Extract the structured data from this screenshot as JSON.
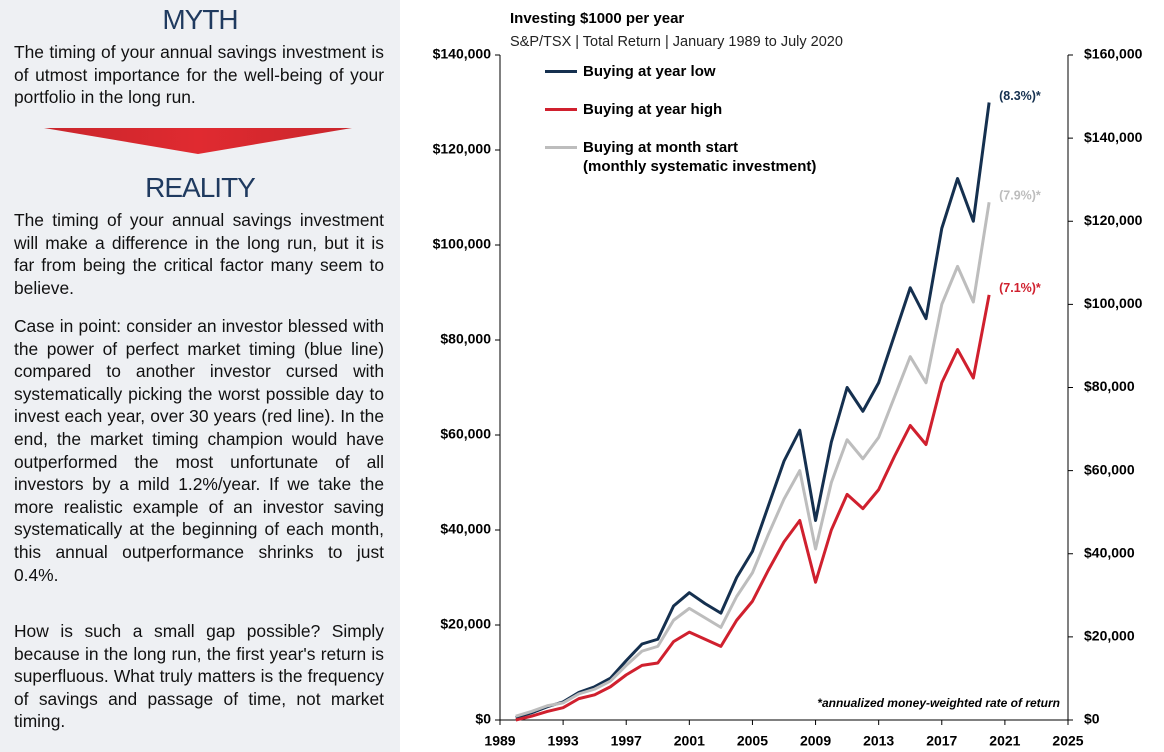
{
  "panel": {
    "myth_heading": "MYTH",
    "myth_text": "The timing of your annual savings investment is of utmost importance for the well-being of your portfolio in the long run.",
    "reality_heading": "REALITY",
    "reality_paragraphs": [
      "The timing of your annual savings investment will make a difference in the long run, but it is far from being the critical factor many seem to believe.",
      "Case in point: consider an investor blessed with the power of perfect market timing (blue line) compared to another investor cursed with systematically picking the worst possible day to invest each year, over 30 years (red line). In the end, the market timing champion would have outperformed the most unfortunate of all investors by a mild 1.2%/year. If we take the more realistic example of an investor saving systematically at the beginning of each month, this annual outperformance shrinks to just 0.4%.",
      "How is such a small gap possible? Simply because in the long run, the first year's return is superfluous. What truly matters is the frequency of savings and passage of time, not market timing."
    ]
  },
  "chart_data": {
    "type": "line",
    "title": "Investing $1000  per year",
    "subtitle": "S&P/TSX | Total Return | January  1989 to July 2020",
    "footnote": "*annualized money-weighted rate of return",
    "x": [
      1990,
      1991,
      1992,
      1993,
      1994,
      1995,
      1996,
      1997,
      1998,
      1999,
      2000,
      2001,
      2002,
      2003,
      2004,
      2005,
      2006,
      2007,
      2008,
      2009,
      2010,
      2011,
      2012,
      2013,
      2014,
      2015,
      2016,
      2017,
      2018,
      2019,
      2020
    ],
    "series": [
      {
        "name": "Buying at year low",
        "color": "#15304f",
        "annotation": "(8.3%)*",
        "values": [
          500,
          1500,
          2800,
          3800,
          5800,
          7000,
          8800,
          12500,
          16000,
          17000,
          24000,
          26800,
          24500,
          22500,
          30000,
          35500,
          45000,
          54500,
          61000,
          42000,
          58500,
          70000,
          65000,
          71000,
          81000,
          91000,
          84500,
          103500,
          114000,
          105000,
          130000
        ]
      },
      {
        "name": "Buying at year high",
        "color": "#d0202e",
        "annotation": "(7.1%)*",
        "values": [
          0,
          800,
          1800,
          2600,
          4500,
          5300,
          7000,
          9500,
          11500,
          12000,
          16500,
          18500,
          17000,
          15500,
          21000,
          25000,
          31500,
          37500,
          42000,
          29000,
          40000,
          47500,
          44500,
          48500,
          55500,
          62000,
          58000,
          71000,
          78000,
          72000,
          89500
        ]
      },
      {
        "name": "Buying at month start\n(monthly systematic investment)",
        "color": "#bdbdbd",
        "annotation": "(7.9%)*",
        "values": [
          800,
          1800,
          3000,
          3600,
          5500,
          6500,
          8200,
          11500,
          14500,
          15500,
          21000,
          23500,
          21500,
          19500,
          26000,
          31000,
          39000,
          46500,
          52500,
          36000,
          50000,
          59000,
          55000,
          59500,
          68000,
          76500,
          71000,
          87500,
          95500,
          88000,
          109000
        ]
      }
    ],
    "xlim": [
      1989,
      2025
    ],
    "xticks": [
      1989,
      1993,
      1997,
      2001,
      2005,
      2009,
      2013,
      2017,
      2021,
      2025
    ],
    "ylim": [
      0,
      140000
    ],
    "yticks": [
      {
        "value": 0,
        "label": "$0"
      },
      {
        "value": 20000,
        "label": "$20,000"
      },
      {
        "value": 40000,
        "label": "$40,000"
      },
      {
        "value": 60000,
        "label": "$60,000"
      },
      {
        "value": 80000,
        "label": "$80,000"
      },
      {
        "value": 100000,
        "label": "$100,000"
      },
      {
        "value": 120000,
        "label": "$120,000"
      },
      {
        "value": 140000,
        "label": "$140,000"
      }
    ],
    "y2lim": [
      0,
      160000
    ],
    "y2ticks": [
      {
        "value": 0,
        "label": "$0"
      },
      {
        "value": 20000,
        "label": "$20,000"
      },
      {
        "value": 40000,
        "label": "$40,000"
      },
      {
        "value": 60000,
        "label": "$60,000"
      },
      {
        "value": 80000,
        "label": "$80,000"
      },
      {
        "value": 100000,
        "label": "$100,000"
      },
      {
        "value": 120000,
        "label": "$120,000"
      },
      {
        "value": 140000,
        "label": "$140,000"
      },
      {
        "value": 160000,
        "label": "$160,000"
      }
    ],
    "legend": "upper left",
    "grid": false
  }
}
